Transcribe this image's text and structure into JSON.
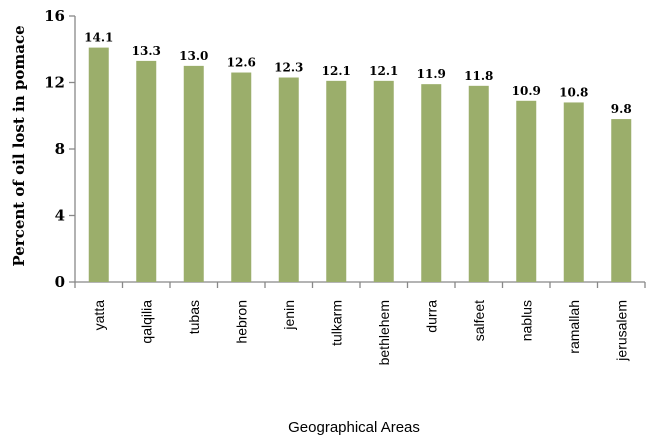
{
  "chart_data": {
    "type": "bar",
    "title": "",
    "xlabel": "Geographical Areas",
    "ylabel": "Percent of oil lost in pomace",
    "categories": [
      "yatta",
      "qalqilia",
      "tubas",
      "hebron",
      "jenin",
      "tulkarm",
      "bethlehem",
      "durra",
      "salfeet",
      "nablus",
      "ramallah",
      "jerusalem"
    ],
    "values": [
      14.1,
      13.3,
      13.0,
      12.6,
      12.3,
      12.1,
      12.1,
      11.9,
      11.8,
      10.9,
      10.8,
      9.8
    ],
    "value_labels": [
      "14.1",
      "13.3",
      "13.0",
      "12.6",
      "12.3",
      "12.1",
      "12.1",
      "11.9",
      "11.8",
      "10.9",
      "10.8",
      "9.8"
    ],
    "ylim": [
      0,
      16
    ],
    "yticks": [
      "0",
      "4",
      "8",
      "12",
      "16"
    ],
    "grid": false,
    "legend": "none",
    "bar_color": "#9bae6b"
  }
}
